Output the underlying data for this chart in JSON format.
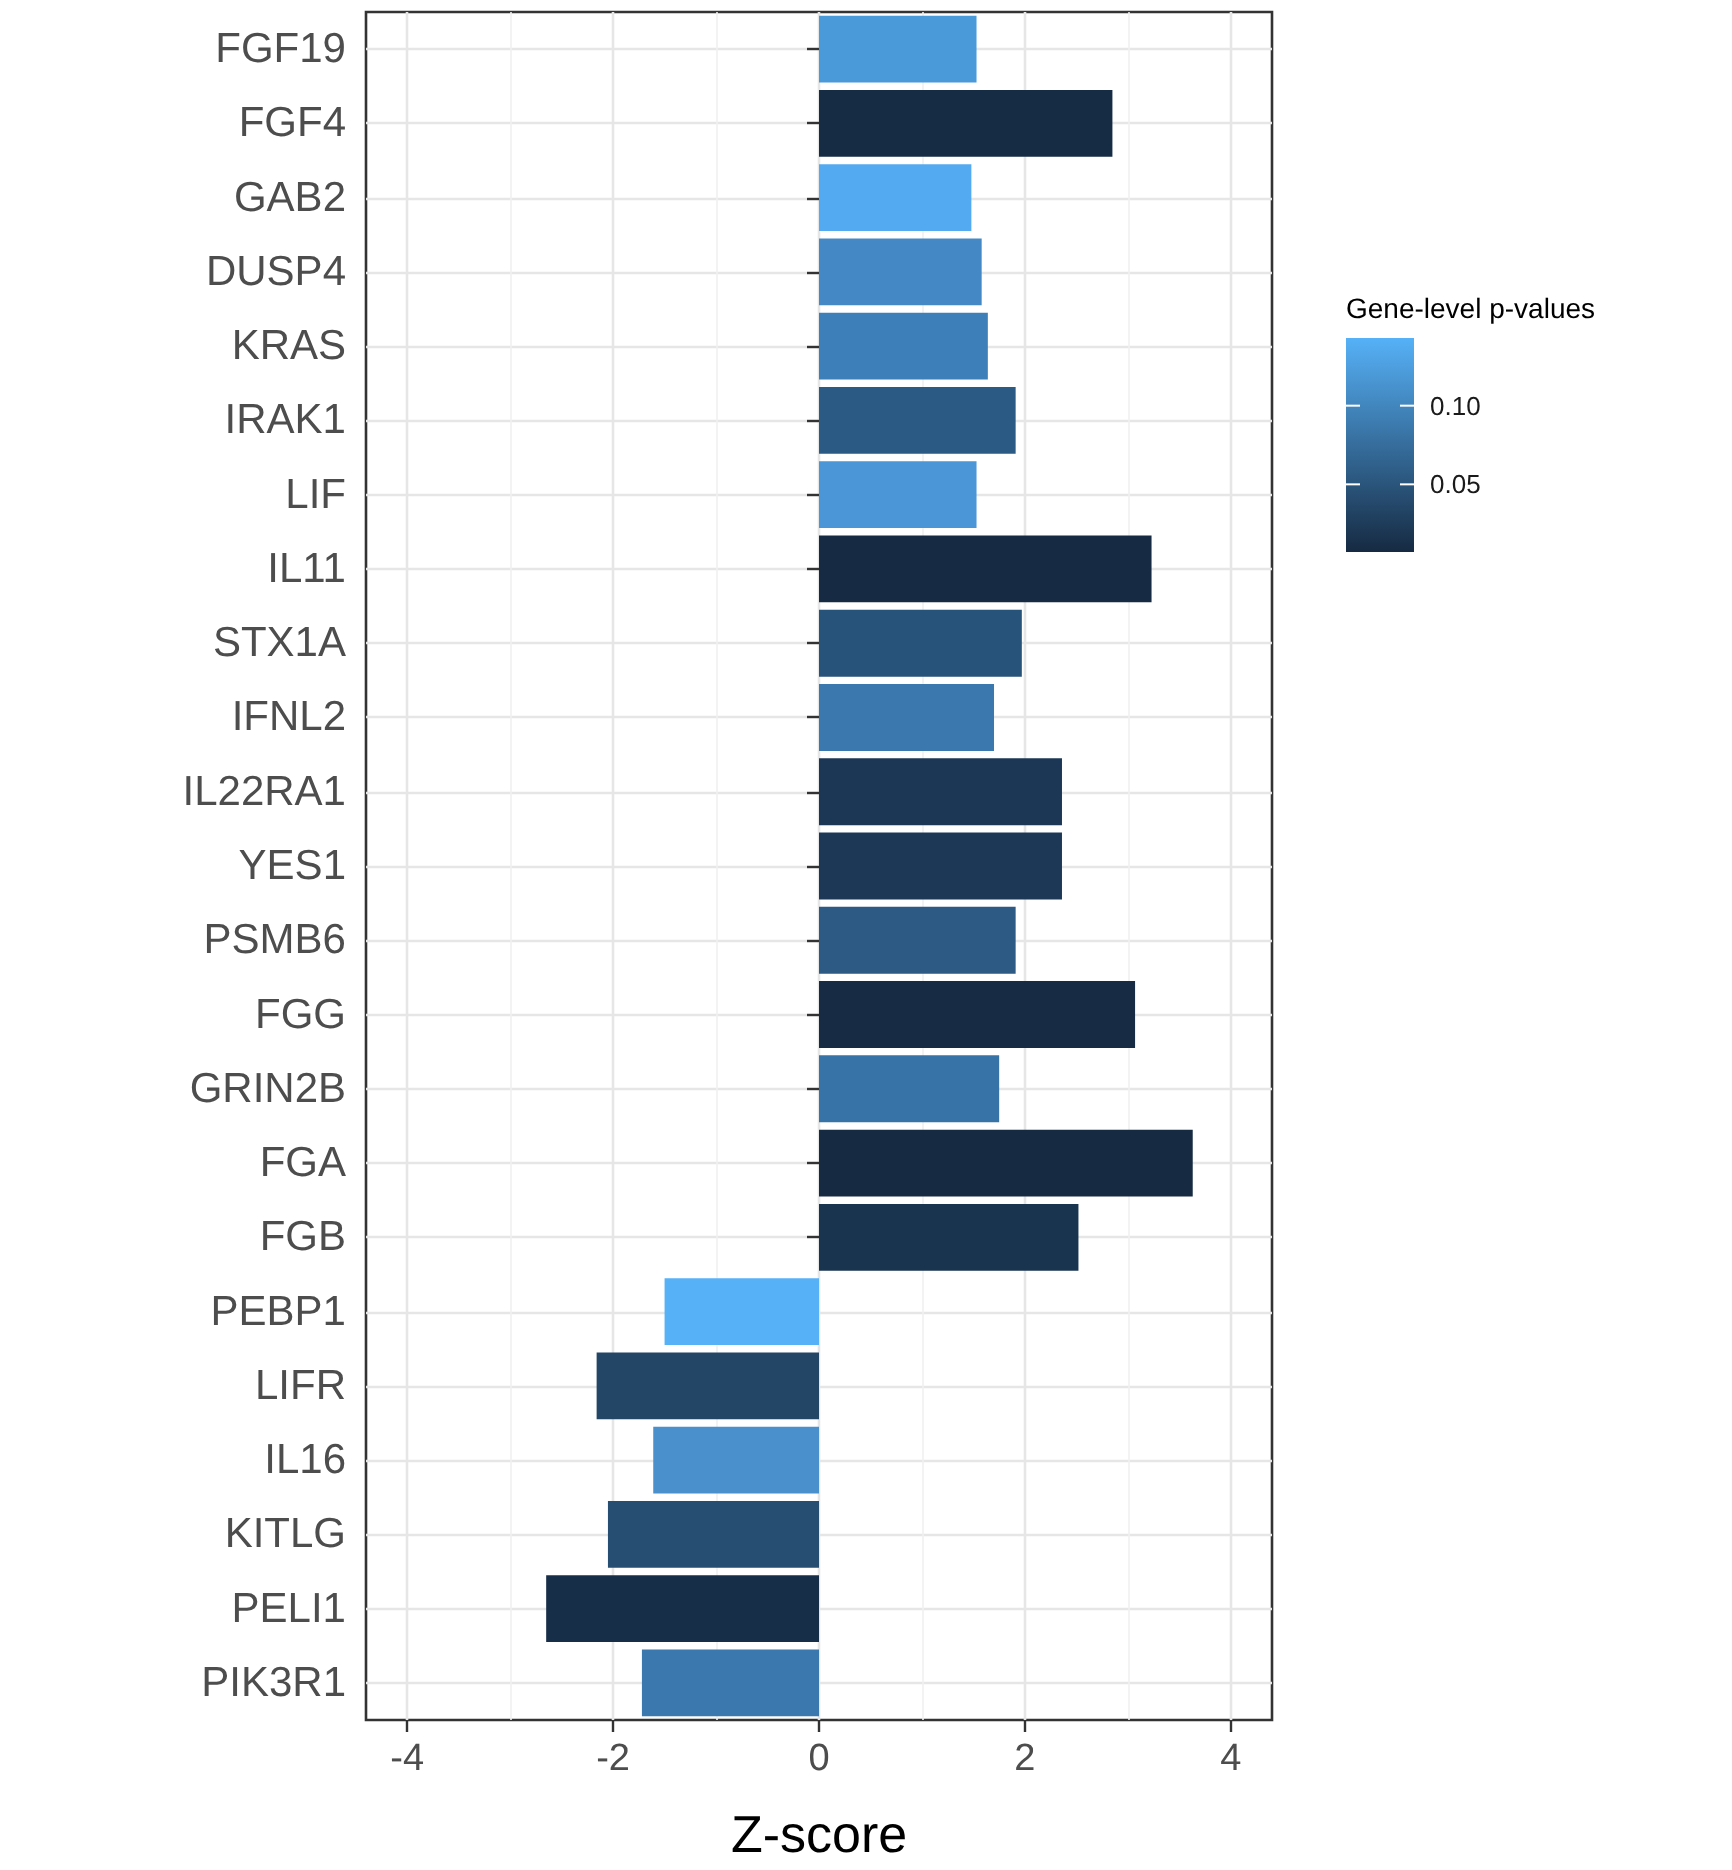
{
  "chart_data": {
    "type": "bar",
    "orientation": "horizontal",
    "categories": [
      "FGF19",
      "FGF4",
      "GAB2",
      "DUSP4",
      "KRAS",
      "IRAK1",
      "LIF",
      "IL11",
      "STX1A",
      "IFNL2",
      "IL22RA1",
      "YES1",
      "PSMB6",
      "FGG",
      "GRIN2B",
      "FGA",
      "FGB",
      "PEBP1",
      "LIFR",
      "IL16",
      "KITLG",
      "PELI1",
      "PIK3R1"
    ],
    "values": [
      1.53,
      2.85,
      1.48,
      1.58,
      1.64,
      1.91,
      1.53,
      3.23,
      1.97,
      1.7,
      2.36,
      2.36,
      1.91,
      3.07,
      1.75,
      3.63,
      2.52,
      -1.5,
      -2.16,
      -1.61,
      -2.05,
      -2.65,
      -1.72
    ],
    "colors": [
      "#4a9ada",
      "#162c45",
      "#54aaf0",
      "#4489c5",
      "#3d7fb8",
      "#2b5a84",
      "#4a96d6",
      "#162b43",
      "#27527a",
      "#3a78ae",
      "#1b3755",
      "#1c3856",
      "#2c5a84",
      "#172c44",
      "#3873a7",
      "#162a42",
      "#19344f",
      "#56b1f7",
      "#234667",
      "#4a90cc",
      "#264d72",
      "#172e48",
      "#3b78ad"
    ],
    "xlim": [
      -4.4,
      4.4
    ],
    "xticks": [
      -4,
      -2,
      0,
      2,
      4
    ],
    "xlabel": "Z-score",
    "grid": true,
    "clabel": "Gene-level p-values",
    "clim": [
      0.007,
      0.143
    ],
    "cticks": [
      0.05,
      {
        "value": 0.1,
        "label": "0.10"
      }
    ]
  }
}
